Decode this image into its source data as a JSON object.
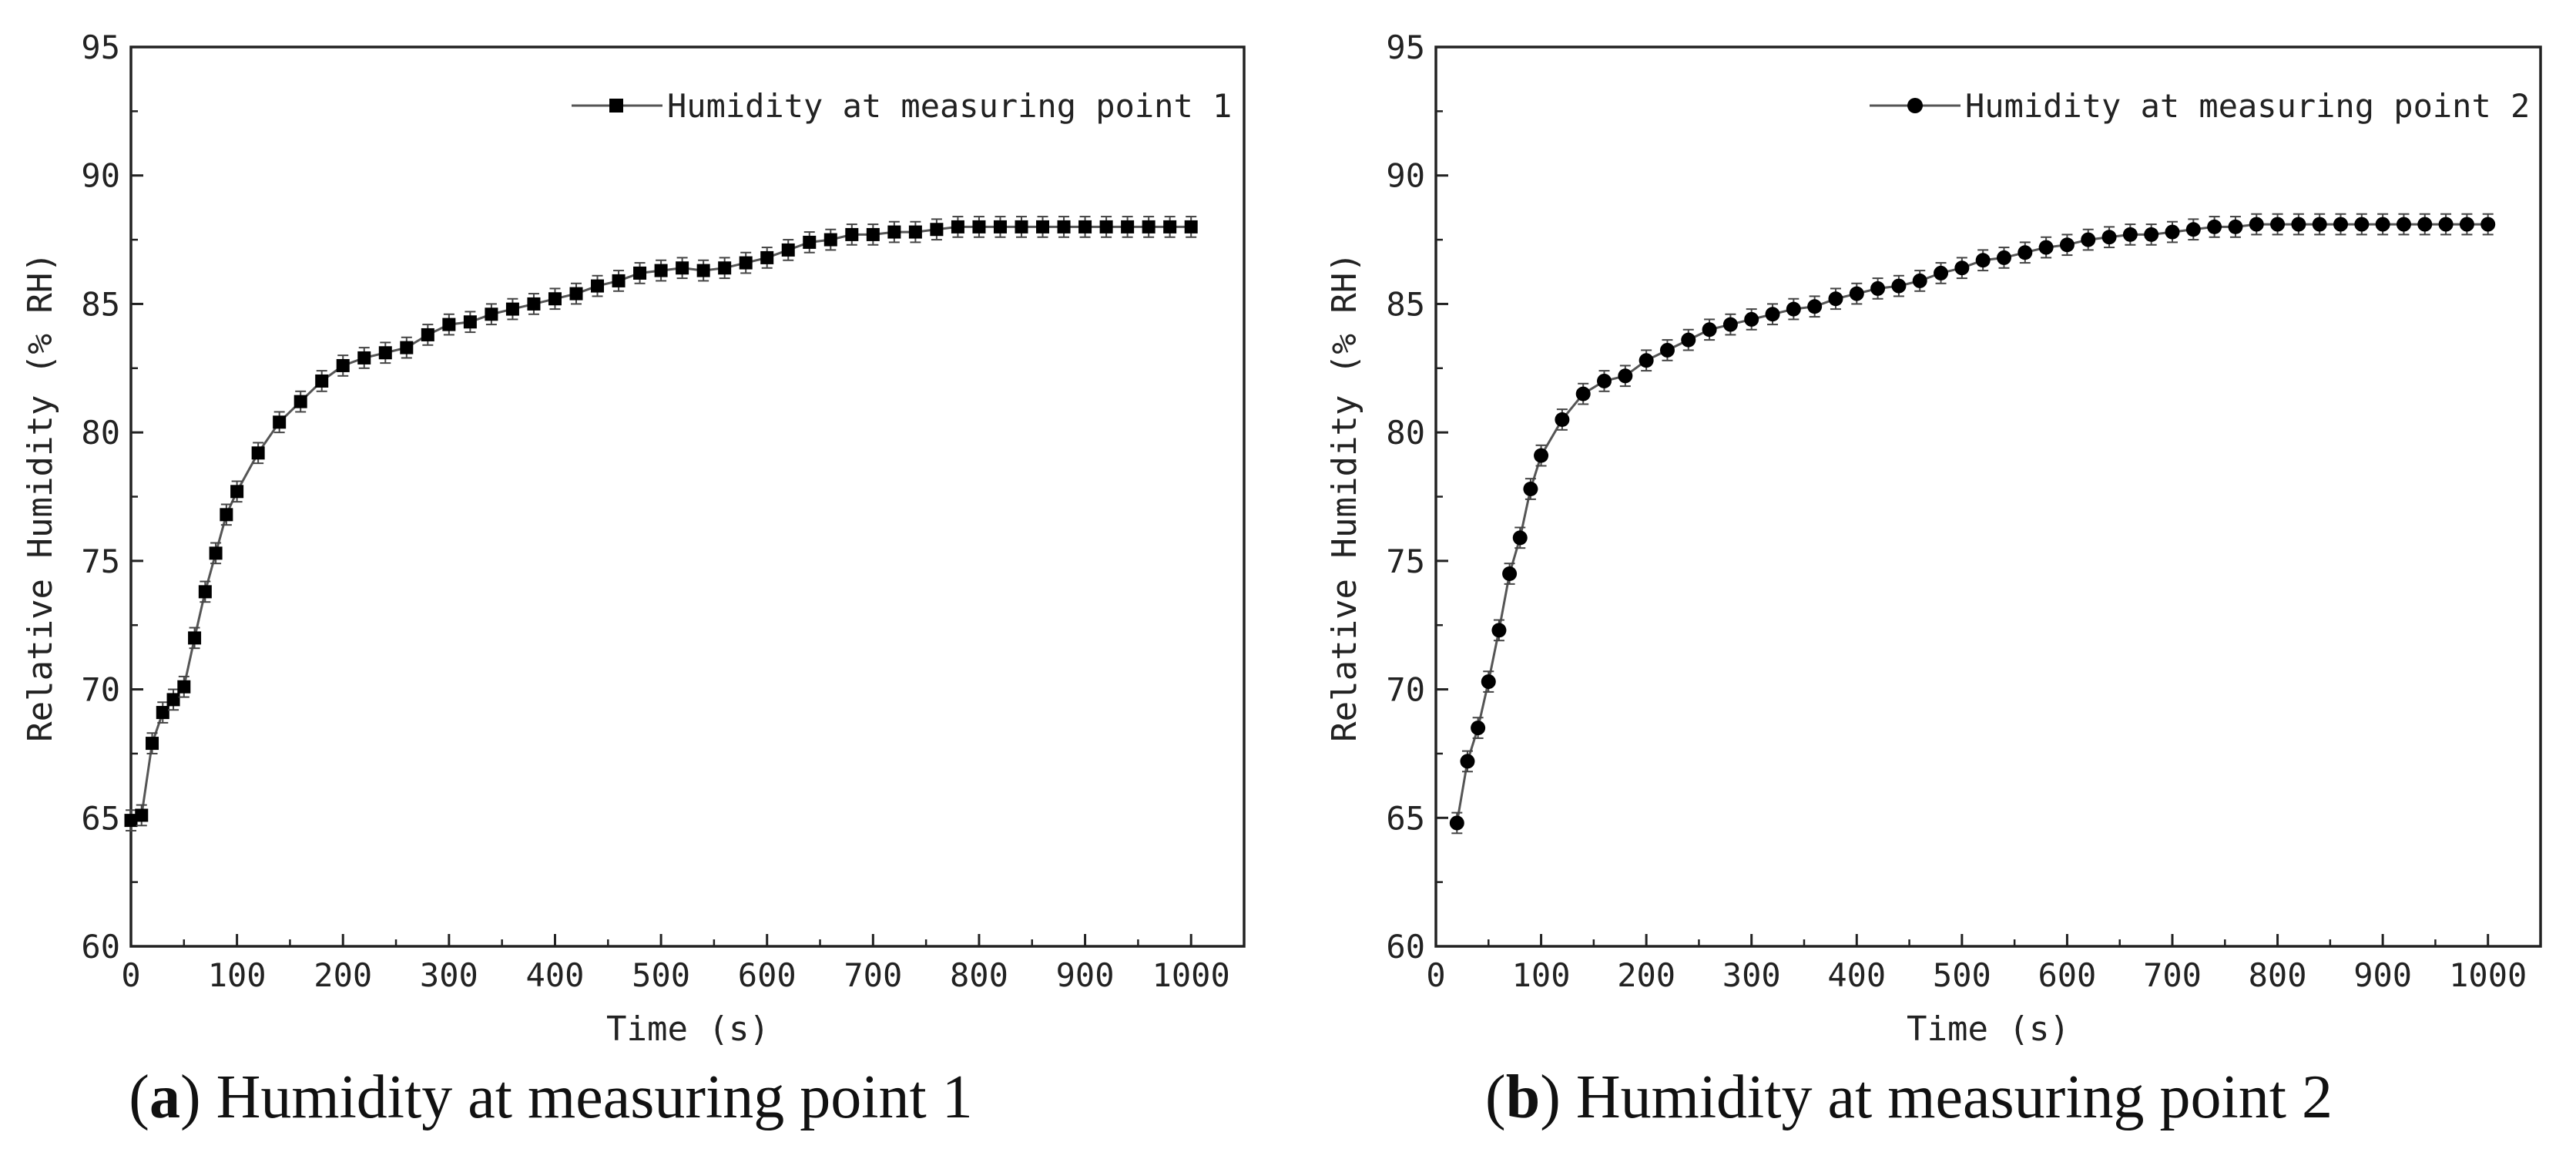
{
  "chart_data": [
    {
      "type": "line",
      "panel_caption": {
        "letter": "a",
        "text": "Humidity at measuring point 1"
      },
      "xlabel": "Time (s)",
      "ylabel": "Relative Humidity (% RH)",
      "xlim": [
        0,
        1050
      ],
      "ylim": [
        60,
        95
      ],
      "xticks": [
        0,
        100,
        200,
        300,
        400,
        500,
        600,
        700,
        800,
        900,
        1000
      ],
      "yticks": [
        60,
        65,
        70,
        75,
        80,
        85,
        90,
        95
      ],
      "legend": {
        "position": "top-right",
        "label": "Humidity at measuring point 1",
        "marker": "square"
      },
      "error_bar": 0.4,
      "series": [
        {
          "name": "Humidity at measuring point 1",
          "marker": "square",
          "x": [
            0,
            10,
            20,
            30,
            40,
            50,
            60,
            70,
            80,
            90,
            100,
            120,
            140,
            160,
            180,
            200,
            220,
            240,
            260,
            280,
            300,
            320,
            340,
            360,
            380,
            400,
            420,
            440,
            460,
            480,
            500,
            520,
            540,
            560,
            580,
            600,
            620,
            640,
            660,
            680,
            700,
            720,
            740,
            760,
            780,
            800,
            820,
            840,
            860,
            880,
            900,
            920,
            940,
            960,
            980,
            1000
          ],
          "y": [
            64.9,
            65.1,
            67.9,
            69.1,
            69.6,
            70.1,
            72.0,
            73.8,
            75.3,
            76.8,
            77.7,
            79.2,
            80.4,
            81.2,
            82.0,
            82.6,
            82.9,
            83.1,
            83.3,
            83.8,
            84.2,
            84.3,
            84.6,
            84.8,
            85.0,
            85.2,
            85.4,
            85.7,
            85.9,
            86.2,
            86.3,
            86.4,
            86.3,
            86.4,
            86.6,
            86.8,
            87.1,
            87.4,
            87.5,
            87.7,
            87.7,
            87.8,
            87.8,
            87.9,
            88.0,
            88.0,
            88.0,
            88.0,
            88.0,
            88.0,
            88.0,
            88.0,
            88.0,
            88.0,
            88.0,
            88.0
          ]
        }
      ]
    },
    {
      "type": "line",
      "panel_caption": {
        "letter": "b",
        "text": "Humidity at measuring point 2"
      },
      "xlabel": "Time (s)",
      "ylabel": "Relative Humidity (% RH)",
      "xlim": [
        0,
        1050
      ],
      "ylim": [
        60,
        95
      ],
      "xticks": [
        0,
        100,
        200,
        300,
        400,
        500,
        600,
        700,
        800,
        900,
        1000
      ],
      "yticks": [
        60,
        65,
        70,
        75,
        80,
        85,
        90,
        95
      ],
      "legend": {
        "position": "top-right",
        "label": "Humidity at measuring point 2",
        "marker": "circle"
      },
      "error_bar": 0.4,
      "series": [
        {
          "name": "Humidity at measuring point 2",
          "marker": "circle",
          "x": [
            20,
            30,
            40,
            50,
            60,
            70,
            80,
            90,
            100,
            120,
            140,
            160,
            180,
            200,
            220,
            240,
            260,
            280,
            300,
            320,
            340,
            360,
            380,
            400,
            420,
            440,
            460,
            480,
            500,
            520,
            540,
            560,
            580,
            600,
            620,
            640,
            660,
            680,
            700,
            720,
            740,
            760,
            780,
            800,
            820,
            840,
            860,
            880,
            900,
            920,
            940,
            960,
            980,
            1000
          ],
          "y": [
            64.8,
            67.2,
            68.5,
            70.3,
            72.3,
            74.5,
            75.9,
            77.8,
            79.1,
            80.5,
            81.5,
            82.0,
            82.2,
            82.8,
            83.2,
            83.6,
            84.0,
            84.2,
            84.4,
            84.6,
            84.8,
            84.9,
            85.2,
            85.4,
            85.6,
            85.7,
            85.9,
            86.2,
            86.4,
            86.7,
            86.8,
            87.0,
            87.2,
            87.3,
            87.5,
            87.6,
            87.7,
            87.7,
            87.8,
            87.9,
            88.0,
            88.0,
            88.1,
            88.1,
            88.1,
            88.1,
            88.1,
            88.1,
            88.1,
            88.1,
            88.1,
            88.1,
            88.1,
            88.1
          ]
        }
      ]
    }
  ]
}
